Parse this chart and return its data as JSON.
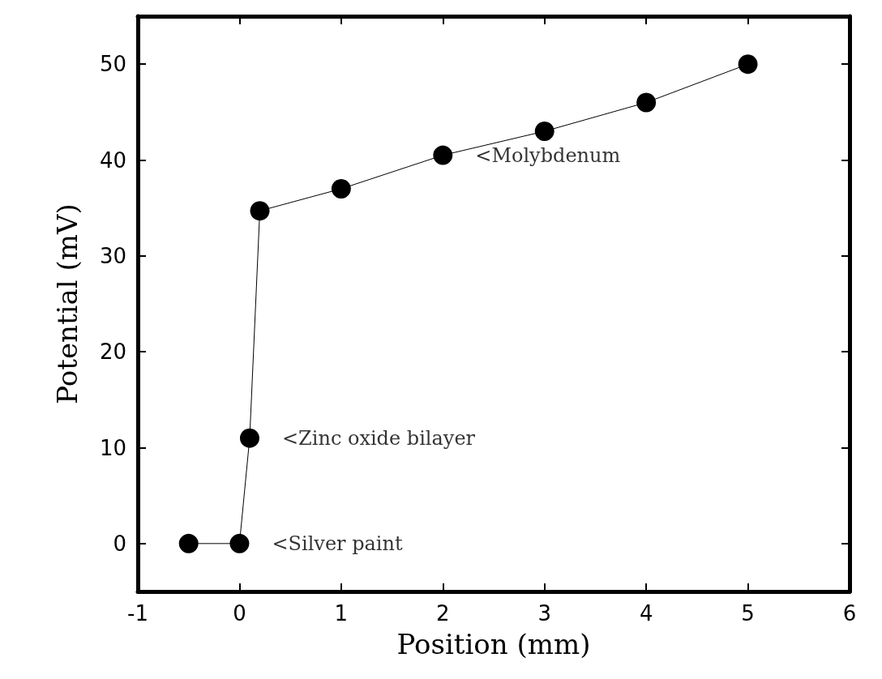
{
  "chart_data": {
    "type": "line",
    "xlabel": "Position (mm)",
    "ylabel": "Potential (mV)",
    "x": [
      -0.5,
      0,
      0.1,
      0.2,
      1,
      2,
      3,
      4,
      5
    ],
    "series": [
      {
        "color": "#000000",
        "values": [
          0,
          0,
          11,
          34.7,
          37,
          40.5,
          43,
          46,
          50
        ]
      }
    ],
    "xlim": [
      -1,
      6
    ],
    "xticks": [
      -1,
      0,
      1,
      2,
      3,
      4,
      5,
      6
    ],
    "ylim": [
      -5,
      55
    ],
    "yticks": [
      0,
      10,
      20,
      30,
      40,
      50
    ],
    "marker": "circle",
    "line_style": "solid",
    "grid": false,
    "annotations": [
      {
        "text": "<Silver paint",
        "x": 0,
        "y": 0
      },
      {
        "text": "<Zinc oxide bilayer",
        "x": 0.1,
        "y": 11
      },
      {
        "text": "<Molybdenum",
        "x": 2,
        "y": 40.5
      }
    ]
  }
}
